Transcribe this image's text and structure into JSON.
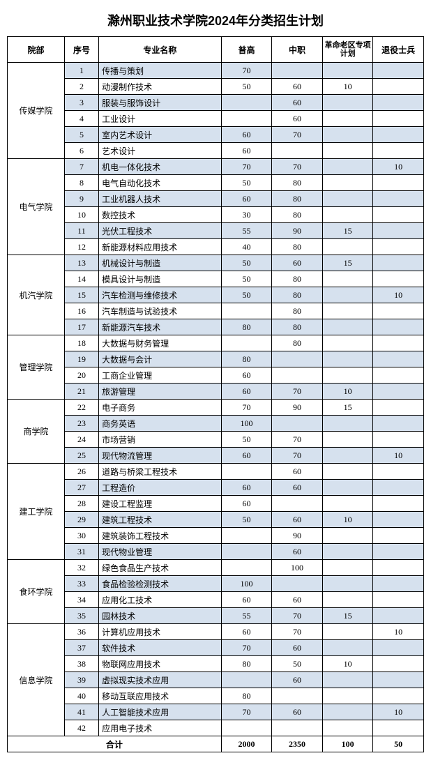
{
  "title": "滁州职业技术学院2024年分类招生计划",
  "headers": {
    "dept": "院部",
    "index": "序号",
    "name": "专业名称",
    "c1": "普高",
    "c2": "中职",
    "c3": "革命老区专项计划",
    "c4": "退役士兵"
  },
  "total_label": "合计",
  "totals": {
    "c1": "2000",
    "c2": "2350",
    "c3": "100",
    "c4": "50"
  },
  "colors": {
    "shaded_bg": "#d6e1ee",
    "plain_bg": "#ffffff",
    "border": "#000000"
  },
  "depts": [
    {
      "name": "传媒学院",
      "rows": [
        {
          "i": 1,
          "n": "传播与策划",
          "c1": "70",
          "c2": "",
          "c3": "",
          "c4": ""
        },
        {
          "i": 2,
          "n": "动漫制作技术",
          "c1": "50",
          "c2": "60",
          "c3": "10",
          "c4": ""
        },
        {
          "i": 3,
          "n": "服装与服饰设计",
          "c1": "",
          "c2": "60",
          "c3": "",
          "c4": ""
        },
        {
          "i": 4,
          "n": "工业设计",
          "c1": "",
          "c2": "60",
          "c3": "",
          "c4": ""
        },
        {
          "i": 5,
          "n": "室内艺术设计",
          "c1": "60",
          "c2": "70",
          "c3": "",
          "c4": ""
        },
        {
          "i": 6,
          "n": "艺术设计",
          "c1": "60",
          "c2": "",
          "c3": "",
          "c4": ""
        }
      ]
    },
    {
      "name": "电气学院",
      "rows": [
        {
          "i": 7,
          "n": "机电一体化技术",
          "c1": "70",
          "c2": "70",
          "c3": "",
          "c4": "10"
        },
        {
          "i": 8,
          "n": "电气自动化技术",
          "c1": "50",
          "c2": "80",
          "c3": "",
          "c4": ""
        },
        {
          "i": 9,
          "n": "工业机器人技术",
          "c1": "60",
          "c2": "80",
          "c3": "",
          "c4": ""
        },
        {
          "i": 10,
          "n": "数控技术",
          "c1": "30",
          "c2": "80",
          "c3": "",
          "c4": ""
        },
        {
          "i": 11,
          "n": "光伏工程技术",
          "c1": "55",
          "c2": "90",
          "c3": "15",
          "c4": ""
        },
        {
          "i": 12,
          "n": "新能源材料应用技术",
          "c1": "40",
          "c2": "80",
          "c3": "",
          "c4": ""
        }
      ]
    },
    {
      "name": "机汽学院",
      "rows": [
        {
          "i": 13,
          "n": "机械设计与制造",
          "c1": "50",
          "c2": "60",
          "c3": "15",
          "c4": ""
        },
        {
          "i": 14,
          "n": "模具设计与制造",
          "c1": "50",
          "c2": "80",
          "c3": "",
          "c4": ""
        },
        {
          "i": 15,
          "n": "汽车检测与维修技术",
          "c1": "50",
          "c2": "80",
          "c3": "",
          "c4": "10"
        },
        {
          "i": 16,
          "n": "汽车制造与试验技术",
          "c1": "",
          "c2": "80",
          "c3": "",
          "c4": ""
        },
        {
          "i": 17,
          "n": "新能源汽车技术",
          "c1": "80",
          "c2": "80",
          "c3": "",
          "c4": ""
        }
      ]
    },
    {
      "name": "管理学院",
      "rows": [
        {
          "i": 18,
          "n": "大数据与财务管理",
          "c1": "",
          "c2": "80",
          "c3": "",
          "c4": ""
        },
        {
          "i": 19,
          "n": "大数据与会计",
          "c1": "80",
          "c2": "",
          "c3": "",
          "c4": ""
        },
        {
          "i": 20,
          "n": "工商企业管理",
          "c1": "60",
          "c2": "",
          "c3": "",
          "c4": ""
        },
        {
          "i": 21,
          "n": "旅游管理",
          "c1": "60",
          "c2": "70",
          "c3": "10",
          "c4": ""
        }
      ]
    },
    {
      "name": "商学院",
      "rows": [
        {
          "i": 22,
          "n": "电子商务",
          "c1": "70",
          "c2": "90",
          "c3": "15",
          "c4": ""
        },
        {
          "i": 23,
          "n": "商务英语",
          "c1": "100",
          "c2": "",
          "c3": "",
          "c4": ""
        },
        {
          "i": 24,
          "n": "市场营销",
          "c1": "50",
          "c2": "70",
          "c3": "",
          "c4": ""
        },
        {
          "i": 25,
          "n": "现代物流管理",
          "c1": "60",
          "c2": "70",
          "c3": "",
          "c4": "10"
        }
      ]
    },
    {
      "name": "建工学院",
      "rows": [
        {
          "i": 26,
          "n": "道路与桥梁工程技术",
          "c1": "",
          "c2": "60",
          "c3": "",
          "c4": ""
        },
        {
          "i": 27,
          "n": "工程造价",
          "c1": "60",
          "c2": "60",
          "c3": "",
          "c4": ""
        },
        {
          "i": 28,
          "n": "建设工程监理",
          "c1": "60",
          "c2": "",
          "c3": "",
          "c4": ""
        },
        {
          "i": 29,
          "n": "建筑工程技术",
          "c1": "50",
          "c2": "60",
          "c3": "10",
          "c4": ""
        },
        {
          "i": 30,
          "n": "建筑装饰工程技术",
          "c1": "",
          "c2": "90",
          "c3": "",
          "c4": ""
        },
        {
          "i": 31,
          "n": "现代物业管理",
          "c1": "",
          "c2": "60",
          "c3": "",
          "c4": ""
        }
      ]
    },
    {
      "name": "食环学院",
      "rows": [
        {
          "i": 32,
          "n": "绿色食品生产技术",
          "c1": "",
          "c2": "100",
          "c3": "",
          "c4": ""
        },
        {
          "i": 33,
          "n": "食品检验检测技术",
          "c1": "100",
          "c2": "",
          "c3": "",
          "c4": ""
        },
        {
          "i": 34,
          "n": "应用化工技术",
          "c1": "60",
          "c2": "60",
          "c3": "",
          "c4": ""
        },
        {
          "i": 35,
          "n": "园林技术",
          "c1": "55",
          "c2": "70",
          "c3": "15",
          "c4": ""
        }
      ]
    },
    {
      "name": "信息学院",
      "rows": [
        {
          "i": 36,
          "n": "计算机应用技术",
          "c1": "60",
          "c2": "70",
          "c3": "",
          "c4": "10"
        },
        {
          "i": 37,
          "n": "软件技术",
          "c1": "70",
          "c2": "60",
          "c3": "",
          "c4": ""
        },
        {
          "i": 38,
          "n": "物联网应用技术",
          "c1": "80",
          "c2": "50",
          "c3": "10",
          "c4": ""
        },
        {
          "i": 39,
          "n": "虚拟现实技术应用",
          "c1": "",
          "c2": "60",
          "c3": "",
          "c4": ""
        },
        {
          "i": 40,
          "n": "移动互联应用技术",
          "c1": "80",
          "c2": "",
          "c3": "",
          "c4": ""
        },
        {
          "i": 41,
          "n": "人工智能技术应用",
          "c1": "70",
          "c2": "60",
          "c3": "",
          "c4": "10"
        },
        {
          "i": 42,
          "n": "应用电子技术",
          "c1": "",
          "c2": "",
          "c3": "",
          "c4": ""
        }
      ]
    }
  ]
}
